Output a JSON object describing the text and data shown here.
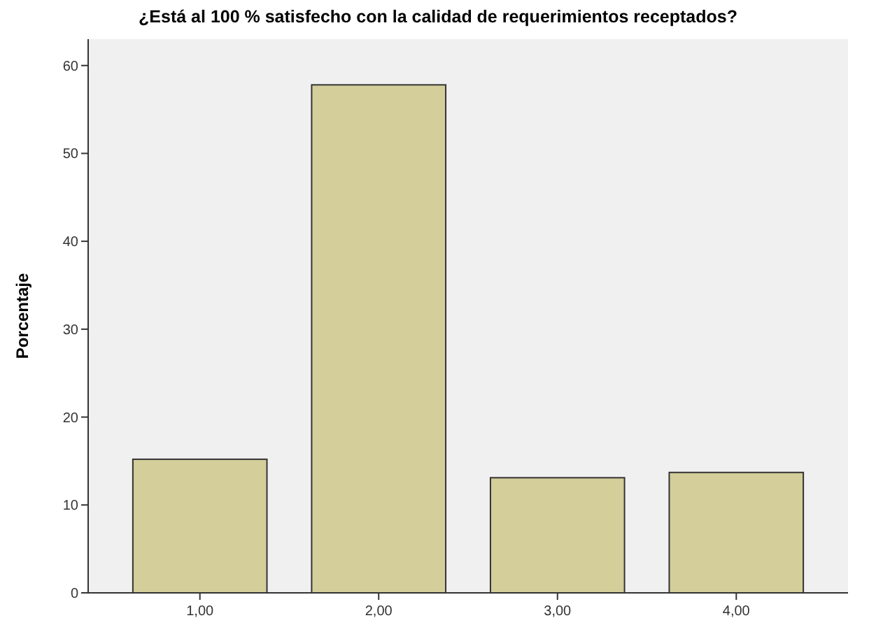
{
  "chart_data": {
    "type": "bar",
    "title": "¿Está al 100 % satisfecho con la calidad de requerimientos receptados?",
    "ylabel": "Porcentaje",
    "categories": [
      "1,00",
      "2,00",
      "3,00",
      "4,00"
    ],
    "values": [
      15.2,
      57.8,
      13.1,
      13.7
    ],
    "color": "#d3ce9a",
    "ylim": [
      0,
      63
    ],
    "yticks": [
      0,
      10,
      20,
      30,
      40,
      50,
      60
    ]
  }
}
